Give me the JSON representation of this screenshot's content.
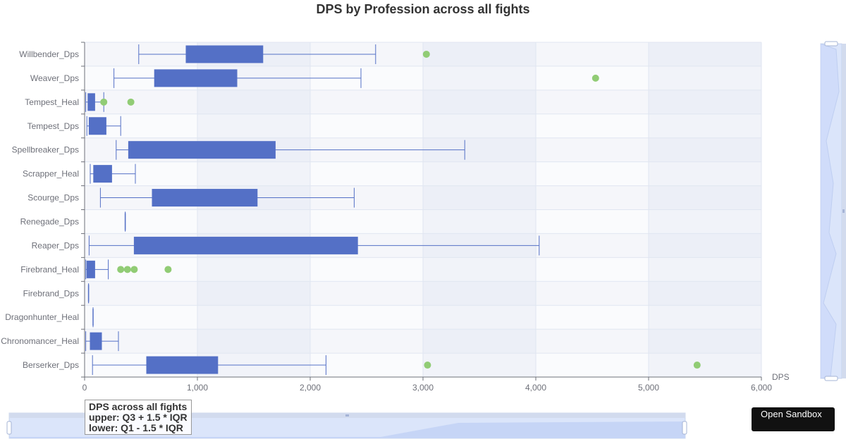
{
  "chart_data": {
    "type": "boxplot",
    "title": "DPS by Profession across all fights",
    "xlabel": "DPS",
    "xlim": [
      0,
      6000
    ],
    "x_ticks": [
      "0",
      "1,000",
      "2,000",
      "3,000",
      "4,000",
      "5,000",
      "6,000"
    ],
    "x_tick_values": [
      0,
      1000,
      2000,
      3000,
      4000,
      5000,
      6000
    ],
    "grid": true,
    "categories": [
      "Willbender_Dps",
      "Weaver_Dps",
      "Tempest_Heal",
      "Tempest_Dps",
      "Spellbreaker_Dps",
      "Scrapper_Heal",
      "Scourge_Dps",
      "Renegade_Dps",
      "Reaper_Dps",
      "Firebrand_Heal",
      "Firebrand_Dps",
      "Dragonhunter_Heal",
      "Chronomancer_Heal",
      "Berserker_Dps"
    ],
    "boxes": [
      {
        "min": 480,
        "q1": 900,
        "median": 1270,
        "q3": 1580,
        "max": 2580
      },
      {
        "min": 260,
        "q1": 620,
        "median": 1070,
        "q3": 1350,
        "max": 2450
      },
      {
        "min": 10,
        "q1": 30,
        "median": 60,
        "q3": 90,
        "max": 170
      },
      {
        "min": 20,
        "q1": 40,
        "median": 90,
        "q3": 190,
        "max": 320
      },
      {
        "min": 280,
        "q1": 390,
        "median": 1000,
        "q3": 1690,
        "max": 3370
      },
      {
        "min": 50,
        "q1": 80,
        "median": 150,
        "q3": 240,
        "max": 450
      },
      {
        "min": 140,
        "q1": 600,
        "median": 1250,
        "q3": 1530,
        "max": 2390
      },
      {
        "min": 360,
        "q1": 360,
        "median": 360,
        "q3": 360,
        "max": 360
      },
      {
        "min": 40,
        "q1": 440,
        "median": 1250,
        "q3": 2420,
        "max": 4030
      },
      {
        "min": 10,
        "q1": 20,
        "median": 50,
        "q3": 90,
        "max": 210
      },
      {
        "min": 35,
        "q1": 35,
        "median": 35,
        "q3": 35,
        "max": 35
      },
      {
        "min": 75,
        "q1": 75,
        "median": 75,
        "q3": 75,
        "max": 75
      },
      {
        "min": 10,
        "q1": 50,
        "median": 90,
        "q3": 150,
        "max": 300
      },
      {
        "min": 70,
        "q1": 550,
        "median": 850,
        "q3": 1180,
        "max": 2140
      }
    ],
    "outliers": [
      {
        "category": "Willbender_Dps",
        "values": [
          3030
        ]
      },
      {
        "category": "Weaver_Dps",
        "values": [
          4530
        ]
      },
      {
        "category": "Tempest_Heal",
        "values": [
          170,
          410
        ]
      },
      {
        "category": "Firebrand_Heal",
        "values": [
          320,
          380,
          440,
          740
        ]
      },
      {
        "category": "Berserker_Dps",
        "values": [
          3040,
          5430
        ]
      }
    ],
    "colors": {
      "box": "#5470c6",
      "outlier": "#91cc75",
      "band_a": "#f5f6fa",
      "band_b": "#fafbfd",
      "grid": "#e0e6f1",
      "axis": "#6e7079"
    }
  },
  "legend": {
    "line1": "DPS across all fights",
    "line2": "upper: Q3 + 1.5 * IQR",
    "line3": "lower: Q1 - 1.5 * IQR"
  },
  "toolbar": {
    "open_sandbox_label": "Open Sandbox"
  }
}
